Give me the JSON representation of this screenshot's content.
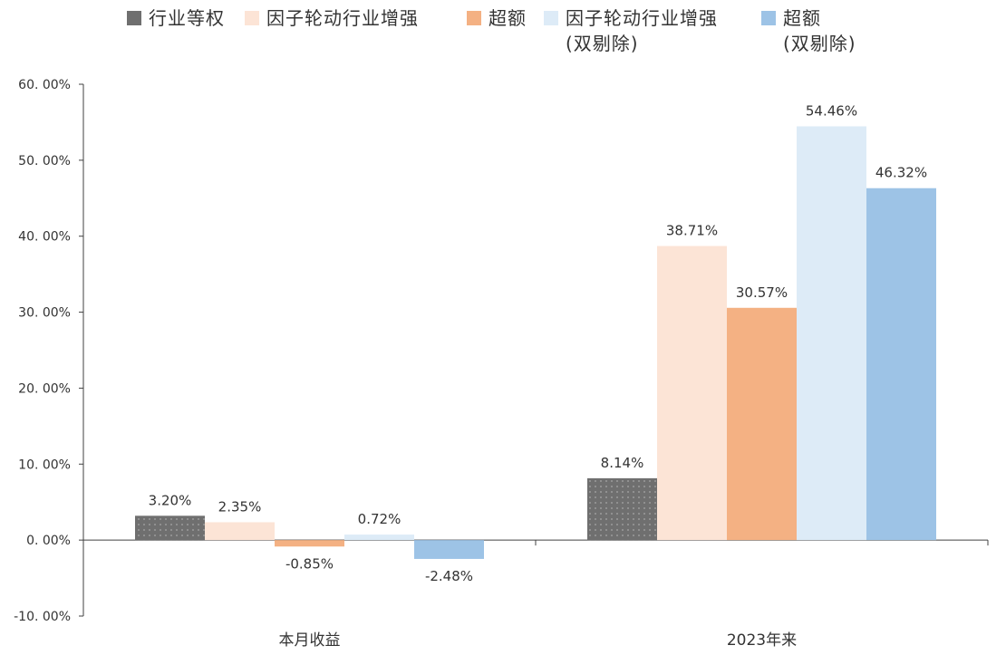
{
  "chart_data": {
    "type": "bar",
    "categories": [
      "本月收益",
      "2023年来"
    ],
    "series": [
      {
        "name": "行业等权",
        "values": [
          3.2,
          8.14
        ],
        "labels": [
          "3.20%",
          "8.14%"
        ],
        "color": "#6f6f6f",
        "pattern": "dots"
      },
      {
        "name": "因子轮动行业增强",
        "values": [
          2.35,
          38.71
        ],
        "labels": [
          "2.35%",
          "38.71%"
        ],
        "color": "#fce4d6"
      },
      {
        "name": "超额",
        "values": [
          -0.85,
          30.57
        ],
        "labels": [
          "-0.85%",
          "30.57%"
        ],
        "color": "#f4b183"
      },
      {
        "name": "因子轮动行业增强\n(双剔除)",
        "values": [
          0.72,
          54.46
        ],
        "labels": [
          "0.72%",
          "54.46%"
        ],
        "color": "#ddebf7"
      },
      {
        "name": "超额\n(双剔除)",
        "values": [
          -2.48,
          46.32
        ],
        "labels": [
          "-2.48%",
          "46.32%"
        ],
        "color": "#9dc3e6"
      }
    ],
    "ylim": [
      -10,
      60
    ],
    "yticks": [
      -10,
      0,
      10,
      20,
      30,
      40,
      50,
      60
    ],
    "ytick_labels": [
      "-10. 00%",
      "0. 00%",
      "10. 00%",
      "20. 00%",
      "30. 00%",
      "40. 00%",
      "50. 00%",
      "60. 00%"
    ],
    "legend_position": "top",
    "grid": false
  }
}
